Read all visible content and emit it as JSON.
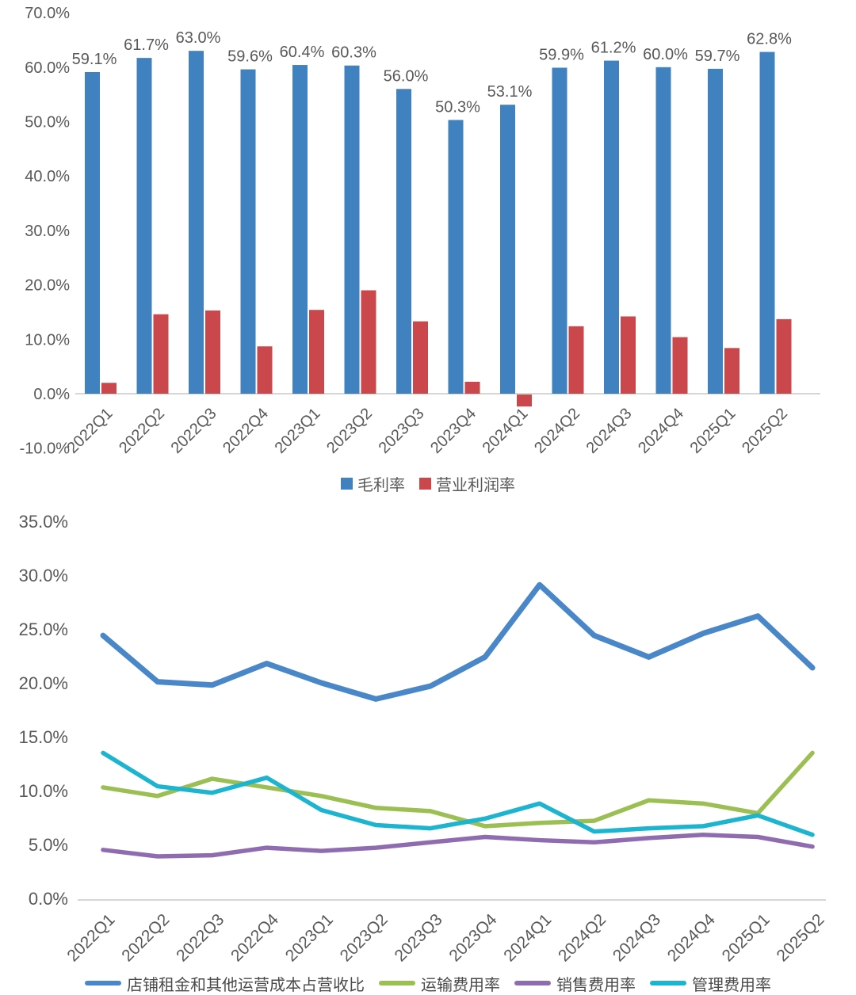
{
  "page": {
    "background": "#ffffff"
  },
  "colors": {
    "axis_line": "#d6d6d6",
    "tick_text": "#595959",
    "data_label_text": "#595959"
  },
  "chart_data": [
    {
      "type": "bar",
      "title": "",
      "xlabel": "",
      "ylabel": "",
      "categories": [
        "2022Q1",
        "2022Q2",
        "2022Q3",
        "2022Q4",
        "2023Q1",
        "2023Q2",
        "2023Q3",
        "2023Q4",
        "2024Q1",
        "2024Q2",
        "2024Q3",
        "2024Q4",
        "2025Q1",
        "2025Q2"
      ],
      "series": [
        {
          "name": "毛利率",
          "color": "#4082C0",
          "values": [
            59.1,
            61.7,
            63.0,
            59.6,
            60.4,
            60.3,
            56.0,
            50.3,
            53.1,
            59.9,
            61.2,
            60.0,
            59.7,
            62.8
          ],
          "data_labels": [
            "59.1%",
            "61.7%",
            "63.0%",
            "59.6%",
            "60.4%",
            "60.3%",
            "56.0%",
            "50.3%",
            "53.1%",
            "59.9%",
            "61.2%",
            "60.0%",
            "59.7%",
            "62.8%"
          ],
          "show_labels": true
        },
        {
          "name": "营业利润率",
          "color": "#CA484C",
          "values": [
            2.0,
            14.6,
            15.3,
            8.7,
            15.4,
            19.0,
            13.3,
            2.2,
            -2.2,
            12.4,
            14.2,
            10.4,
            8.4,
            13.7
          ],
          "show_labels": false
        }
      ],
      "ylim": [
        -10,
        70
      ],
      "yticks": [
        {
          "value": 70,
          "label": "70.0%"
        },
        {
          "value": 60,
          "label": "60.0%"
        },
        {
          "value": 50,
          "label": "50.0%"
        },
        {
          "value": 40,
          "label": "40.0%"
        },
        {
          "value": 30,
          "label": "30.0%"
        },
        {
          "value": 20,
          "label": "20.0%"
        },
        {
          "value": 10,
          "label": "10.0%"
        },
        {
          "value": 0,
          "label": "0.0%"
        },
        {
          "value": -10,
          "label": "-10.0%"
        }
      ],
      "grid": false,
      "legend_position": "bottom"
    },
    {
      "type": "line",
      "title": "",
      "xlabel": "",
      "ylabel": "",
      "categories": [
        "2022Q1",
        "2022Q2",
        "2022Q3",
        "2022Q4",
        "2023Q1",
        "2023Q2",
        "2023Q3",
        "2023Q4",
        "2024Q1",
        "2024Q2",
        "2024Q3",
        "2024Q4",
        "2025Q1",
        "2025Q2"
      ],
      "series": [
        {
          "name": "店铺租金和其他运营成本占营收比",
          "color": "#4A87C8",
          "values": [
            24.4,
            20.1,
            19.8,
            21.8,
            20.0,
            18.5,
            19.7,
            22.4,
            29.1,
            24.4,
            22.4,
            24.6,
            26.2,
            21.4
          ]
        },
        {
          "name": "运输费用率",
          "color": "#9BBF53",
          "values": [
            10.3,
            9.5,
            11.1,
            10.3,
            9.5,
            8.4,
            8.1,
            6.7,
            7.0,
            7.2,
            9.1,
            8.8,
            7.9,
            13.5
          ]
        },
        {
          "name": "销售费用率",
          "color": "#8F6CB0",
          "values": [
            4.5,
            3.9,
            4.0,
            4.7,
            4.4,
            4.7,
            5.2,
            5.7,
            5.4,
            5.2,
            5.6,
            5.9,
            5.7,
            4.8
          ]
        },
        {
          "name": "管理费用率",
          "color": "#1CB4CE",
          "values": [
            13.5,
            10.4,
            9.8,
            11.2,
            8.2,
            6.8,
            6.5,
            7.4,
            8.8,
            6.2,
            6.5,
            6.7,
            7.7,
            5.9
          ]
        }
      ],
      "ylim": [
        0,
        35
      ],
      "yticks": [
        {
          "value": 35,
          "label": "35.0%"
        },
        {
          "value": 30,
          "label": "30.0%"
        },
        {
          "value": 25,
          "label": "25.0%"
        },
        {
          "value": 20,
          "label": "20.0%"
        },
        {
          "value": 15,
          "label": "15.0%"
        },
        {
          "value": 10,
          "label": "10.0%"
        },
        {
          "value": 5,
          "label": "5.0%"
        },
        {
          "value": 0,
          "label": "0.0%"
        }
      ],
      "grid": false,
      "legend_position": "bottom"
    }
  ]
}
